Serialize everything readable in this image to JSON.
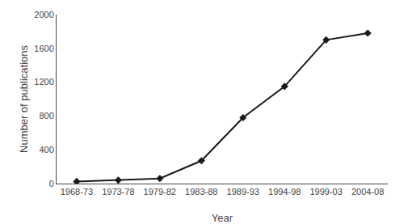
{
  "chart_data": {
    "type": "line",
    "categories": [
      "1968-73",
      "1973-78",
      "1979-82",
      "1983-88",
      "1989-93",
      "1994-98",
      "1999-03",
      "2004-08"
    ],
    "values": [
      25,
      40,
      60,
      270,
      780,
      1150,
      1700,
      1780
    ],
    "xlabel": "Year",
    "ylabel": "Number of publications",
    "ylim": [
      0,
      2000
    ],
    "yticks": [
      0,
      400,
      800,
      1200,
      1600,
      2000
    ],
    "color": "#1a1a1a",
    "marker": "diamond",
    "grid": false
  }
}
